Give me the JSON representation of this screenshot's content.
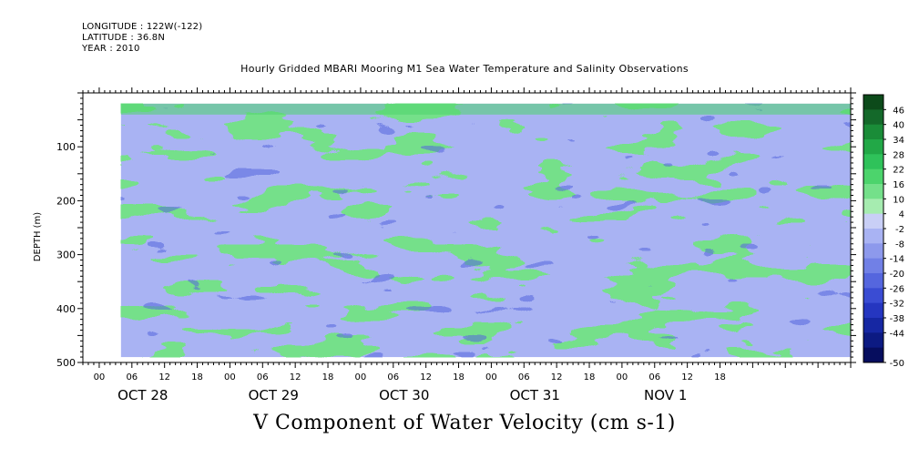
{
  "header": {
    "longitude": "LONGITUDE : 122W(-122)",
    "latitude": "LATITUDE : 36.8N",
    "year": "YEAR : 2010"
  },
  "chart_data": {
    "type": "heatmap",
    "title": "Hourly Gridded MBARI Mooring M1 Sea Water Temperature and Salinity Observations",
    "xlabel": "V Component of Water Velocity (cm s-1)",
    "ylabel": "DEPTH (m)",
    "ylim": [
      500,
      0
    ],
    "y_ticks": [
      100,
      200,
      300,
      400,
      500
    ],
    "y_tick_labels": [
      "100",
      "200",
      "300",
      "400",
      "500"
    ],
    "x_hour_ticks": [
      "00",
      "06",
      "12",
      "18",
      "00",
      "06",
      "12",
      "18",
      "00",
      "06",
      "12",
      "18",
      "00",
      "06",
      "12",
      "18",
      "00",
      "06",
      "12",
      "18"
    ],
    "x_day_labels": [
      "OCT 28",
      "OCT 29",
      "OCT 30",
      "OCT 31",
      "NOV 1"
    ],
    "x_range_hours": [
      -3,
      138
    ],
    "data_x_range_hours": [
      4,
      138
    ],
    "data_y_range_m": [
      20,
      490
    ],
    "colorbar_levels": [
      "46",
      "40",
      "34",
      "28",
      "22",
      "16",
      "10",
      "4",
      "-2",
      "-8",
      "-14",
      "-20",
      "-26",
      "-32",
      "-38",
      "-44",
      "-50"
    ],
    "colorbar_colors": [
      "#0c4a1a",
      "#14692a",
      "#1a8c38",
      "#22a847",
      "#2fc25a",
      "#4cd46c",
      "#74e08a",
      "#a6ecb0",
      "#c9cff6",
      "#a9b3f3",
      "#8d99ec",
      "#7180e6",
      "#5566de",
      "#3a4cd3",
      "#2536c0",
      "#1627a3",
      "#0c1a82",
      "#060d5e"
    ],
    "colorbar_extremes": [
      50,
      -50
    ]
  }
}
